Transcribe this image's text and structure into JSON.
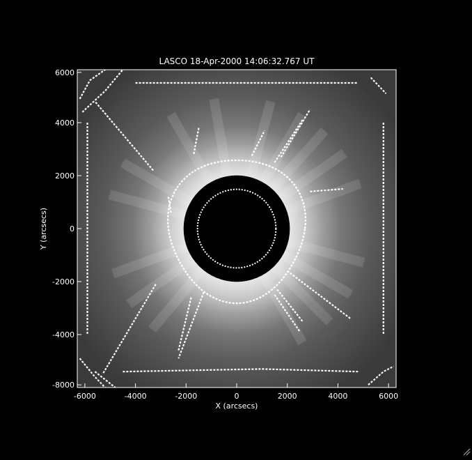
{
  "chart_data": {
    "type": "heatmap",
    "title": "LASCO   18-Apr-2000 14:06:32.767 UT",
    "xlabel": "X (arcsecs)",
    "ylabel": "Y (arcsecs)",
    "xlim": [
      -6300,
      6300
    ],
    "ylim": [
      -6000,
      6000
    ],
    "x_ticks": [
      -6000,
      -4000,
      -2000,
      0,
      2000,
      4000,
      6000
    ],
    "y_ticks": [
      -8000,
      -4000,
      -2000,
      0,
      2000,
      4000,
      6000
    ],
    "occulter_radius": 2100,
    "inner_circle_radius": 1550,
    "halo_ring_radius": 2700,
    "grid": false,
    "colors": {
      "background": "#000000",
      "axes": "#ffffff",
      "contour": "#ffffff"
    }
  },
  "window": {
    "resize_icon": "resize-grip-icon"
  }
}
